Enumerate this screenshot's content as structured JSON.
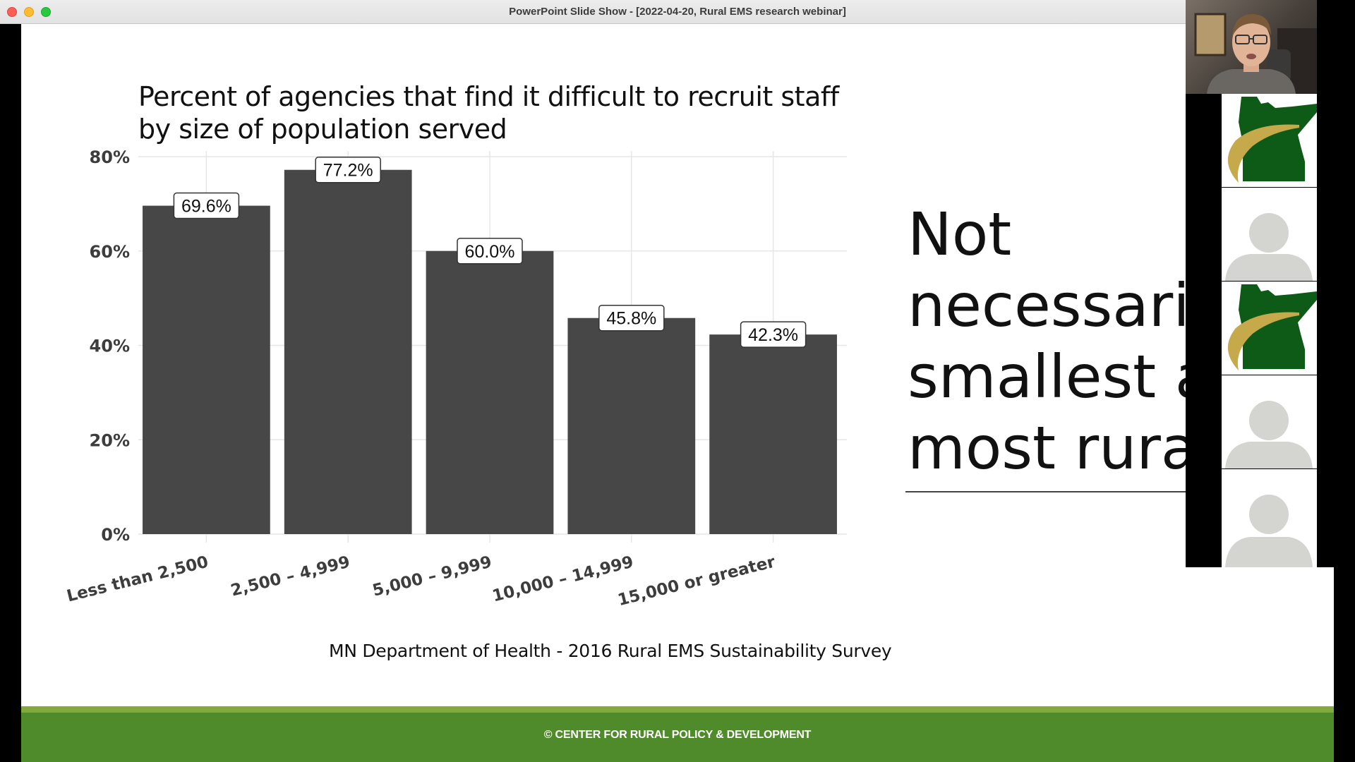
{
  "window": {
    "title": "PowerPoint Slide Show - [2022-04-20, Rural EMS research webinar]"
  },
  "slide": {
    "chart_title": "Percent of agencies that find it difficult to recruit staff by size of population served",
    "source": "MN Department of Health - 2016 Rural EMS Sustainability Survey",
    "big_text": [
      "Not",
      "necessarily",
      "smallest and",
      "most rural"
    ],
    "footer": "© CENTER FOR RURAL POLICY & DEVELOPMENT"
  },
  "chart_data": {
    "type": "bar",
    "title": "Percent of agencies that find it difficult to recruit staff by size of population served",
    "categories": [
      "Less than 2,500",
      "2,500 – 4,999",
      "5,000 – 9,999",
      "10,000 – 14,999",
      "15,000 or greater"
    ],
    "values": [
      69.6,
      77.2,
      60.0,
      45.8,
      42.3
    ],
    "data_labels": [
      "69.6%",
      "77.2%",
      "60.0%",
      "45.8%",
      "42.3%"
    ],
    "y_ticks": [
      0,
      20,
      40,
      60,
      80
    ],
    "y_tick_labels": [
      "0%",
      "20%",
      "40%",
      "60%",
      "80%"
    ],
    "ylim": [
      0,
      80
    ],
    "xlabel": "",
    "ylabel": "",
    "grid": true,
    "bar_color": "#474747"
  },
  "participants": [
    {
      "kind": "video",
      "icon": "presenter-video-icon"
    },
    {
      "kind": "logo",
      "icon": "minnesota-logo-icon"
    },
    {
      "kind": "avatar",
      "icon": "user-avatar-icon"
    },
    {
      "kind": "logo",
      "icon": "minnesota-logo-icon"
    },
    {
      "kind": "avatar",
      "icon": "user-avatar-icon"
    },
    {
      "kind": "avatar",
      "icon": "user-avatar-icon"
    }
  ],
  "colors": {
    "footer_green": "#4f8a2b",
    "footer_strip": "#83a83c",
    "logo_green": "#0d5b17",
    "logo_gold": "#c5a94a",
    "avatar_gray": "#d4d4d0"
  }
}
